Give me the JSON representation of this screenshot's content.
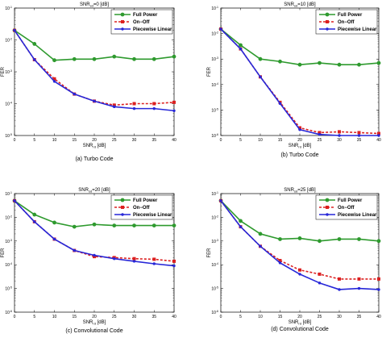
{
  "colors": {
    "full_power": "#2e9a2e",
    "on_off": "#dc2020",
    "piecewise_linear": "#2727d8",
    "axes": "#000000"
  },
  "chart_data": [
    {
      "type": "line",
      "title": "SNR_sd=0 [dB]",
      "xlabel": "SNR_rd [dB]",
      "ylabel": "FER",
      "xlim": [
        0,
        40
      ],
      "ylim": [
        1e-05,
        0.1
      ],
      "yscale": "log",
      "x_ticks": [
        "0",
        "5",
        "10",
        "15",
        "20",
        "25",
        "30",
        "35",
        "40"
      ],
      "y_ticks": [
        {
          "base": "10",
          "exp": "-1"
        },
        {
          "base": "10",
          "exp": "-2"
        },
        {
          "base": "10",
          "exp": "-3"
        },
        {
          "base": "10",
          "exp": "-4"
        },
        {
          "base": "10",
          "exp": "-5"
        }
      ],
      "legend": {
        "placement": "top-right",
        "entries": [
          "Full Power",
          "On−Off",
          "Piecewise Linear"
        ]
      },
      "caption": "(a) Turbo Code",
      "x": [
        0,
        5,
        10,
        15,
        20,
        25,
        30,
        35,
        40
      ],
      "series": [
        {
          "name": "Full Power",
          "values": [
            0.02,
            0.0075,
            0.0023,
            0.0025,
            0.0025,
            0.003,
            0.0025,
            0.0025,
            0.003
          ]
        },
        {
          "name": "On−Off",
          "values": [
            0.02,
            0.0024,
            0.0006,
            0.0002,
            0.00012,
            9e-05,
            0.0001,
            0.0001,
            0.00011
          ]
        },
        {
          "name": "Piecewise Linear",
          "values": [
            0.02,
            0.0024,
            0.0005,
            0.0002,
            0.00012,
            8e-05,
            7e-05,
            7e-05,
            6e-05
          ]
        }
      ]
    },
    {
      "type": "line",
      "title": "SNR_sd=10 [dB]",
      "xlabel": "SNR_rd [dB]",
      "ylabel": "FER",
      "xlim": [
        0,
        40
      ],
      "ylim": [
        1e-06,
        0.1
      ],
      "yscale": "log",
      "x_ticks": [
        "0",
        "5",
        "10",
        "15",
        "20",
        "25",
        "30",
        "35",
        "40"
      ],
      "y_ticks": [
        {
          "base": "10",
          "exp": "-1"
        },
        {
          "base": "10",
          "exp": "-2"
        },
        {
          "base": "10",
          "exp": "-3"
        },
        {
          "base": "10",
          "exp": "-4"
        },
        {
          "base": "10",
          "exp": "-5"
        },
        {
          "base": "10",
          "exp": "-6"
        }
      ],
      "legend": {
        "placement": "top-right",
        "entries": [
          "Full Power",
          "On−Off",
          "Piecewise Linear"
        ]
      },
      "caption": "(b) Turbo Code",
      "x": [
        0,
        5,
        10,
        15,
        20,
        25,
        30,
        35,
        40
      ],
      "series": [
        {
          "name": "Full Power",
          "values": [
            0.015,
            0.0035,
            0.001,
            0.0008,
            0.0006,
            0.0007,
            0.0006,
            0.0006,
            0.0007
          ]
        },
        {
          "name": "On−Off",
          "values": [
            0.015,
            0.0025,
            0.0002,
            2e-05,
            2e-06,
            1.3e-06,
            1.4e-06,
            1.3e-06,
            1.2e-06
          ]
        },
        {
          "name": "Piecewise Linear",
          "values": [
            0.015,
            0.0025,
            0.0002,
            1.8e-05,
            1.7e-06,
            1.1e-06,
            1e-06,
            1e-06,
            1e-06
          ]
        }
      ]
    },
    {
      "type": "line",
      "title": "SNR_sd=20 [dB]",
      "xlabel": "SNR_rd [dB]",
      "ylabel": "FER",
      "xlim": [
        0,
        40
      ],
      "ylim": [
        1e-06,
        0.1
      ],
      "yscale": "log",
      "x_ticks": [
        "0",
        "5",
        "10",
        "15",
        "20",
        "25",
        "30",
        "35",
        "40"
      ],
      "y_ticks": [
        {
          "base": "10",
          "exp": "-1"
        },
        {
          "base": "10",
          "exp": "-2"
        },
        {
          "base": "10",
          "exp": "-3"
        },
        {
          "base": "10",
          "exp": "-4"
        },
        {
          "base": "10",
          "exp": "-5"
        },
        {
          "base": "10",
          "exp": "-6"
        }
      ],
      "legend": {
        "placement": "top-right",
        "entries": [
          "Full Power",
          "On−Off",
          "Piecewise Linear"
        ]
      },
      "caption": "(c) Convolutional Code",
      "x": [
        0,
        5,
        10,
        15,
        20,
        25,
        30,
        35,
        40
      ],
      "series": [
        {
          "name": "Full Power",
          "values": [
            0.05,
            0.013,
            0.006,
            0.004,
            0.005,
            0.0045,
            0.0045,
            0.0045,
            0.0045
          ]
        },
        {
          "name": "On−Off",
          "values": [
            0.05,
            0.0065,
            0.0012,
            0.0004,
            0.00022,
            0.0002,
            0.00018,
            0.00017,
            0.00014
          ]
        },
        {
          "name": "Piecewise Linear",
          "values": [
            0.05,
            0.0065,
            0.0012,
            0.0004,
            0.00025,
            0.00018,
            0.00014,
            0.00011,
            9e-05
          ]
        }
      ]
    },
    {
      "type": "line",
      "title": "SNR_sd=25 [dB]",
      "xlabel": "SNR_rd [dB]",
      "ylabel": "FER",
      "xlim": [
        0,
        40
      ],
      "ylim": [
        1e-06,
        0.1
      ],
      "yscale": "log",
      "x_ticks": [
        "0",
        "5",
        "10",
        "15",
        "20",
        "25",
        "30",
        "35",
        "40"
      ],
      "y_ticks": [
        {
          "base": "10",
          "exp": "-1"
        },
        {
          "base": "10",
          "exp": "-2"
        },
        {
          "base": "10",
          "exp": "-3"
        },
        {
          "base": "10",
          "exp": "-4"
        },
        {
          "base": "10",
          "exp": "-5"
        },
        {
          "base": "10",
          "exp": "-6"
        }
      ],
      "legend": {
        "placement": "top-right",
        "entries": [
          "Full Power",
          "On−Off",
          "Piecewise Linear"
        ]
      },
      "caption": "(d) Convolutional Code",
      "x": [
        0,
        5,
        10,
        15,
        20,
        25,
        30,
        35,
        40
      ],
      "series": [
        {
          "name": "Full Power",
          "values": [
            0.05,
            0.007,
            0.002,
            0.0012,
            0.0013,
            0.001,
            0.0012,
            0.0012,
            0.001
          ]
        },
        {
          "name": "On−Off",
          "values": [
            0.05,
            0.004,
            0.0006,
            0.00015,
            6e-05,
            4e-05,
            2.5e-05,
            2.5e-05,
            2.5e-05
          ]
        },
        {
          "name": "Piecewise Linear",
          "values": [
            0.05,
            0.004,
            0.0006,
            0.00012,
            4e-05,
            1.7e-05,
            9e-06,
            1e-05,
            9e-06
          ]
        }
      ]
    }
  ]
}
